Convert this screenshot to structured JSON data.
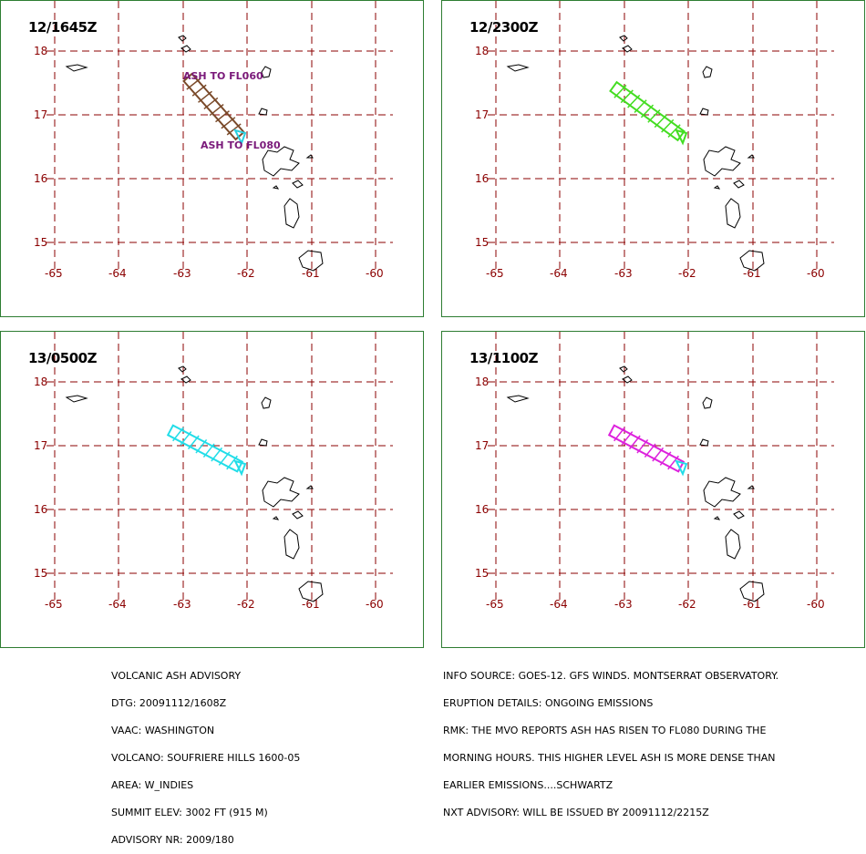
{
  "panels": [
    {
      "timestamp": "12/1645Z",
      "annotations": [
        "ASH TO FL060",
        "ASH TO FL080"
      ],
      "plume_color": "#7a4a2a",
      "outline_color": "#2ad0e0"
    },
    {
      "timestamp": "12/2300Z",
      "annotations": [],
      "plume_color": "#44dd22",
      "outline_color": "#44dd22"
    },
    {
      "timestamp": "13/0500Z",
      "annotations": [],
      "plume_color": "#22dde8",
      "outline_color": "#22dde8"
    },
    {
      "timestamp": "13/1100Z",
      "annotations": [],
      "plume_color": "#dd22dd",
      "outline_color": "#22dde8"
    }
  ],
  "lat_labels": [
    "18",
    "17",
    "16",
    "15"
  ],
  "lon_labels": [
    "-65",
    "-64",
    "-63",
    "-62",
    "-61",
    "-60"
  ],
  "advisory_left": [
    "VOLCANIC ASH ADVISORY",
    "DTG: 20091112/1608Z",
    "VAAC: WASHINGTON",
    "VOLCANO: SOUFRIERE HILLS 1600-05",
    "AREA: W_INDIES",
    "SUMMIT ELEV: 3002 FT (915 M)",
    "ADVISORY NR: 2009/180"
  ],
  "advisory_right": [
    "INFO SOURCE: GOES-12. GFS WINDS. MONTSERRAT OBSERVATORY.",
    "ERUPTION DETAILS: ONGOING EMISSIONS",
    "RMK: THE MVO REPORTS ASH HAS RISEN TO FL080 DURING THE",
    "MORNING HOURS. THIS HIGHER LEVEL ASH IS MORE DENSE THAN",
    "EARLIER EMISSIONS....SCHWARTZ",
    "NXT ADVISORY: WILL BE ISSUED BY 20091112/2215Z"
  ],
  "colors": {
    "grid": "#8b0000",
    "border": "#2e7d32",
    "coast": "#000000"
  }
}
